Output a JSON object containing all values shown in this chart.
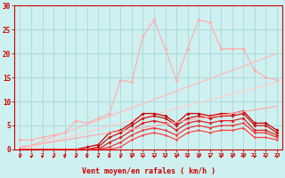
{
  "bg_color": "#cff0f0",
  "grid_color": "#a8d8d8",
  "x": [
    0,
    1,
    2,
    3,
    4,
    5,
    6,
    7,
    8,
    9,
    10,
    11,
    12,
    13,
    14,
    15,
    16,
    17,
    18,
    19,
    20,
    21,
    22,
    23
  ],
  "series": [
    {
      "color": "#ffaaaa",
      "linewidth": 0.8,
      "marker": "D",
      "markersize": 1.8,
      "y": [
        2.0,
        2.0,
        2.5,
        3.0,
        3.5,
        6.0,
        5.5,
        6.5,
        7.5,
        14.5,
        14.0,
        23.5,
        27.0,
        21.0,
        14.5,
        21.0,
        27.0,
        26.5,
        21.0,
        21.0,
        21.0,
        16.5,
        15.0,
        14.5
      ]
    },
    {
      "color": "#ffbbbb",
      "linewidth": 0.9,
      "marker": "D",
      "markersize": 0,
      "y": [
        0.0,
        0.87,
        1.74,
        2.61,
        3.48,
        4.35,
        5.22,
        6.09,
        6.96,
        7.83,
        8.7,
        9.57,
        10.43,
        11.3,
        12.17,
        13.04,
        13.91,
        14.78,
        15.65,
        16.52,
        17.39,
        18.26,
        19.13,
        20.0
      ]
    },
    {
      "color": "#ffcccc",
      "linewidth": 0.9,
      "marker": "D",
      "markersize": 0,
      "y": [
        0.0,
        0.61,
        1.22,
        1.83,
        2.43,
        3.04,
        3.65,
        4.26,
        4.87,
        5.48,
        6.09,
        6.7,
        7.3,
        7.91,
        8.52,
        9.13,
        9.74,
        10.35,
        10.96,
        11.57,
        12.17,
        12.78,
        13.39,
        14.0
      ]
    },
    {
      "color": "#cc0000",
      "linewidth": 0.9,
      "marker": "D",
      "markersize": 1.8,
      "y": [
        0.0,
        0.0,
        0.0,
        0.0,
        0.0,
        0.0,
        0.5,
        1.0,
        3.5,
        4.0,
        5.5,
        7.5,
        7.5,
        7.0,
        5.5,
        7.5,
        7.5,
        7.0,
        7.5,
        7.5,
        8.0,
        5.5,
        5.5,
        4.0
      ]
    },
    {
      "color": "#cc1111",
      "linewidth": 0.9,
      "marker": "D",
      "markersize": 1.8,
      "y": [
        0.0,
        0.0,
        0.0,
        0.0,
        0.0,
        0.0,
        0.0,
        0.5,
        2.5,
        3.5,
        5.0,
        6.5,
        7.0,
        6.5,
        5.0,
        6.5,
        7.0,
        6.5,
        7.0,
        7.0,
        7.5,
        5.0,
        5.0,
        3.5
      ]
    },
    {
      "color": "#dd2222",
      "linewidth": 0.9,
      "marker": "D",
      "markersize": 1.8,
      "y": [
        0.0,
        0.0,
        0.0,
        0.0,
        0.0,
        0.0,
        0.0,
        0.0,
        1.5,
        2.5,
        4.0,
        5.5,
        6.0,
        5.5,
        4.0,
        5.5,
        6.0,
        5.5,
        6.0,
        6.0,
        6.5,
        4.0,
        4.0,
        3.0
      ]
    },
    {
      "color": "#ee3333",
      "linewidth": 0.9,
      "marker": "D",
      "markersize": 1.5,
      "y": [
        0.0,
        0.0,
        0.0,
        0.0,
        0.0,
        0.0,
        0.0,
        0.0,
        0.5,
        1.5,
        3.0,
        4.0,
        4.5,
        4.0,
        3.0,
        4.5,
        5.0,
        4.5,
        5.0,
        5.0,
        5.5,
        3.5,
        3.5,
        2.5
      ]
    },
    {
      "color": "#ff4444",
      "linewidth": 0.9,
      "marker": "D",
      "markersize": 1.5,
      "y": [
        0.0,
        0.0,
        0.0,
        0.0,
        0.0,
        0.0,
        0.0,
        0.0,
        0.0,
        0.5,
        2.0,
        3.0,
        3.5,
        3.0,
        2.0,
        3.5,
        4.0,
        3.5,
        4.0,
        4.0,
        4.5,
        2.5,
        2.5,
        2.0
      ]
    },
    {
      "color": "#ffaaaa",
      "linewidth": 0.9,
      "marker": "",
      "markersize": 0,
      "y": [
        0.5,
        0.87,
        1.24,
        1.61,
        1.98,
        2.35,
        2.72,
        3.09,
        3.46,
        3.83,
        4.2,
        4.57,
        4.93,
        5.3,
        5.67,
        6.04,
        6.41,
        6.78,
        7.15,
        7.52,
        7.89,
        8.26,
        8.63,
        9.0
      ]
    }
  ],
  "xlabel": "Vent moyen/en rafales ( km/h )",
  "xlim_min": -0.5,
  "xlim_max": 23.5,
  "ylim": [
    0,
    30
  ],
  "yticks": [
    0,
    5,
    10,
    15,
    20,
    25,
    30
  ],
  "xticks": [
    0,
    1,
    2,
    3,
    4,
    5,
    6,
    7,
    8,
    9,
    10,
    11,
    12,
    13,
    14,
    15,
    16,
    17,
    18,
    19,
    20,
    21,
    22,
    23
  ],
  "tick_color": "#cc0000",
  "label_color": "#cc0000"
}
